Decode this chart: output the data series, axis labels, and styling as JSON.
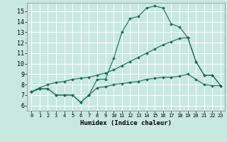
{
  "xlabel": "Humidex (Indice chaleur)",
  "bg_color": "#c8e8e0",
  "grid_color": "#ffffff",
  "line_color": "#1a6b5a",
  "xlim": [
    -0.5,
    23.5
  ],
  "ylim": [
    5.5,
    15.8
  ],
  "yticks": [
    6,
    7,
    8,
    9,
    10,
    11,
    12,
    13,
    14,
    15
  ],
  "xticks": [
    0,
    1,
    2,
    3,
    4,
    5,
    6,
    7,
    8,
    9,
    10,
    11,
    12,
    13,
    14,
    15,
    16,
    17,
    18,
    19,
    20,
    21,
    22,
    23
  ],
  "series": [
    [
      7.3,
      7.6,
      7.6,
      7.0,
      7.0,
      7.0,
      6.3,
      7.0,
      8.5,
      8.5,
      10.5,
      13.0,
      14.3,
      14.5,
      15.3,
      15.5,
      15.3,
      13.8,
      13.5,
      12.5,
      10.2,
      8.9,
      8.9,
      7.9
    ],
    [
      7.3,
      7.7,
      8.0,
      8.2,
      8.3,
      8.5,
      8.6,
      8.7,
      8.9,
      9.1,
      9.4,
      9.8,
      10.2,
      10.6,
      11.0,
      11.4,
      11.8,
      12.1,
      12.4,
      12.5,
      10.2,
      8.9,
      8.9,
      7.9
    ],
    [
      7.3,
      7.6,
      7.6,
      7.0,
      7.0,
      7.0,
      6.3,
      7.0,
      7.7,
      7.8,
      8.0,
      8.1,
      8.2,
      8.3,
      8.5,
      8.6,
      8.7,
      8.7,
      8.8,
      9.0,
      8.5,
      8.0,
      7.9,
      7.9
    ]
  ]
}
